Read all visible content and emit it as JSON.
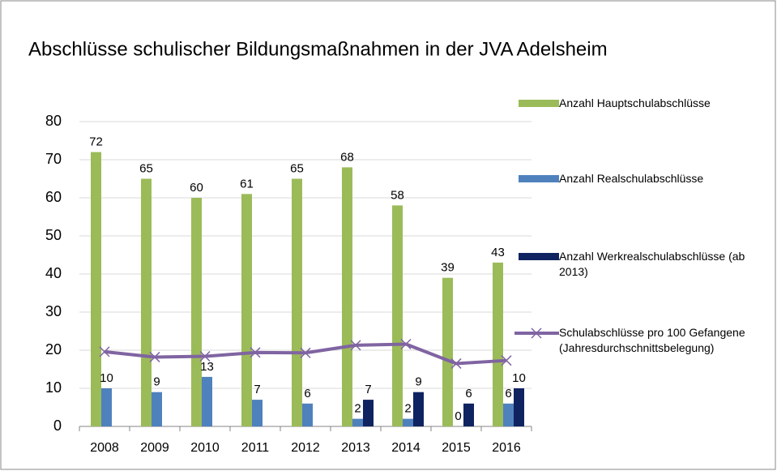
{
  "chart_data": {
    "type": "bar",
    "title": "Abschlüsse schulischer Bildungsmaßnahmen in der JVA Adelsheim",
    "categories": [
      "2008",
      "2009",
      "2010",
      "2011",
      "2012",
      "2013",
      "2014",
      "2015",
      "2016"
    ],
    "series": [
      {
        "name": "Anzahl Hauptschulabschlüsse",
        "color": "#9bbb59",
        "values": [
          72,
          65,
          60,
          61,
          65,
          68,
          58,
          39,
          43
        ]
      },
      {
        "name": "Anzahl Realschulabschlüsse",
        "color": "#4f81bd",
        "values": [
          10,
          9,
          13,
          7,
          6,
          2,
          2,
          0,
          6
        ]
      },
      {
        "name": "Anzahl Werkrealschulabschlüsse (ab 2013)",
        "color": "#0f2361",
        "values": [
          null,
          null,
          null,
          null,
          null,
          7,
          9,
          6,
          10
        ]
      },
      {
        "name": "Schulabschlüsse pro 100 Gefangene (Jahresdurchschnittsbelegung)",
        "color": "#8064a2",
        "type": "line",
        "values": [
          19.6,
          18.2,
          18.4,
          19.4,
          19.3,
          21.3,
          21.6,
          16.5,
          17.3
        ]
      }
    ],
    "ylim": [
      0,
      80
    ],
    "yticks": [
      0,
      10,
      20,
      30,
      40,
      50,
      60,
      70,
      80
    ],
    "grid": true,
    "legend": "right"
  }
}
